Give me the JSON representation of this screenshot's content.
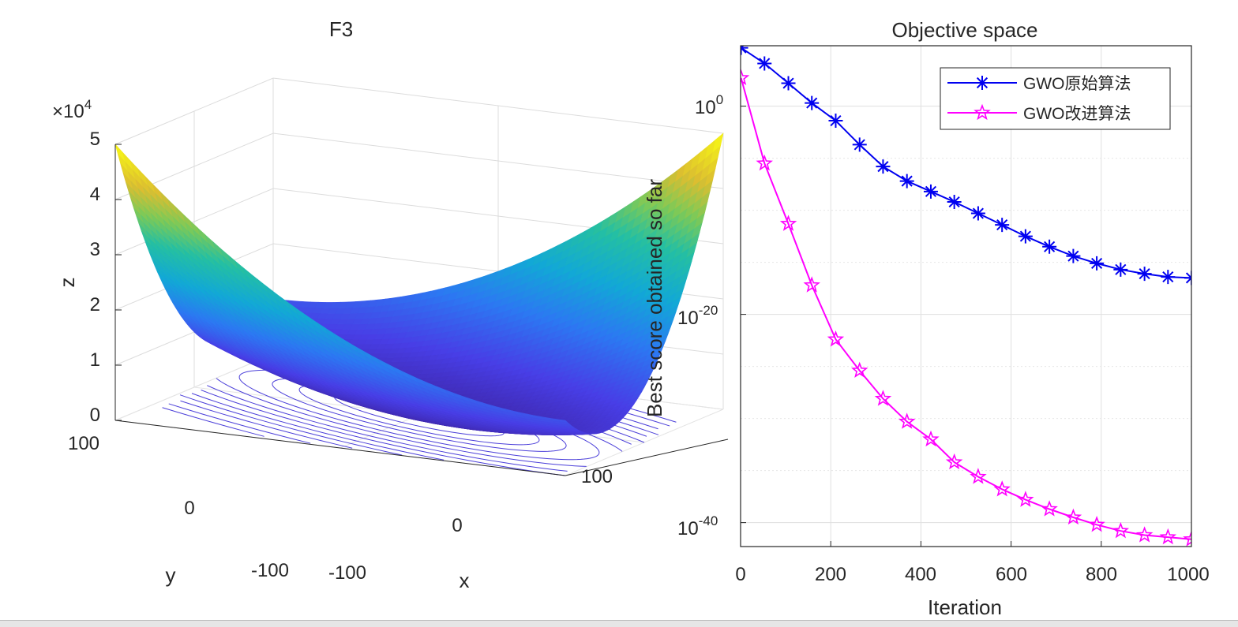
{
  "chart_data": [
    {
      "type": "surface3d",
      "title": "F3",
      "xlabel": "x",
      "ylabel": "y",
      "zlabel": "z",
      "z_exponent_label": "×10",
      "z_exponent_power": "4",
      "x_ticks": [
        "-100",
        "0",
        "100"
      ],
      "y_ticks": [
        "-100",
        "0",
        "100"
      ],
      "z_ticks": [
        "0",
        "1",
        "2",
        "3",
        "4",
        "5"
      ],
      "xlim": [
        -100,
        100
      ],
      "ylim": [
        -100,
        100
      ],
      "zlim": [
        0,
        5
      ],
      "function": "(x + y)^2 + y^2",
      "colormap": "parula",
      "contour_levels": [
        0.1,
        0.2,
        0.3,
        0.45,
        0.6,
        0.8,
        1.0,
        1.25,
        1.5,
        1.8,
        2.2,
        2.6
      ],
      "contour_color": "#4b3fd9"
    },
    {
      "type": "line",
      "title": "Objective space",
      "xlabel": "Iteration",
      "ylabel": "Best score obtained so far",
      "yscale": "log",
      "xlim": [
        0,
        1000
      ],
      "ylim_exp": [
        -42.3,
        5.8
      ],
      "x_ticks": [
        "0",
        "200",
        "400",
        "600",
        "800",
        "1000"
      ],
      "y_ticks": [
        {
          "base": "10",
          "exp": "0",
          "value": 0
        },
        {
          "base": "10",
          "exp": "-20",
          "value": -20
        },
        {
          "base": "10",
          "exp": "-40",
          "value": -40
        }
      ],
      "grid": true,
      "legend_position": "top-right",
      "series": [
        {
          "name": "GWO原始算法",
          "color": "#0000f0",
          "marker": "asterisk",
          "x": [
            1,
            53,
            106,
            158,
            211,
            264,
            316,
            369,
            422,
            474,
            527,
            580,
            632,
            685,
            738,
            790,
            843,
            896,
            948,
            1000
          ],
          "log10_y": [
            5.6,
            4.1,
            2.2,
            0.3,
            -1.4,
            -3.7,
            -5.8,
            -7.2,
            -8.2,
            -9.2,
            -10.3,
            -11.4,
            -12.5,
            -13.5,
            -14.4,
            -15.1,
            -15.7,
            -16.1,
            -16.4,
            -16.5
          ]
        },
        {
          "name": "GWO改进算法",
          "color": "#ff00ff",
          "marker": "pentagram",
          "x": [
            1,
            53,
            106,
            158,
            211,
            264,
            316,
            369,
            422,
            474,
            527,
            580,
            632,
            685,
            738,
            790,
            843,
            896,
            948,
            1000
          ],
          "log10_y": [
            2.7,
            -5.5,
            -11.3,
            -17.2,
            -22.4,
            -25.4,
            -28.1,
            -30.3,
            -32.0,
            -34.2,
            -35.6,
            -36.8,
            -37.8,
            -38.7,
            -39.5,
            -40.2,
            -40.8,
            -41.2,
            -41.4,
            -41.6
          ]
        }
      ]
    }
  ]
}
